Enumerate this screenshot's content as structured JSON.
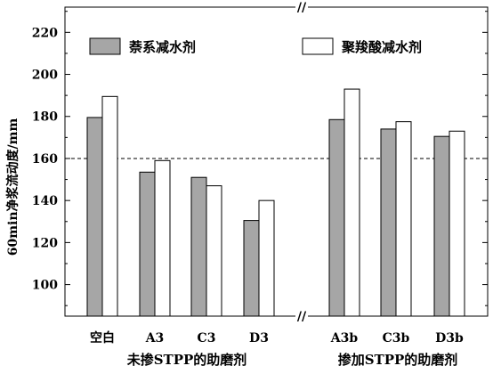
{
  "chart_data": {
    "type": "bar",
    "ylabel": "60min净浆流动度/mm",
    "ylim": [
      85,
      232
    ],
    "yticks": [
      100,
      120,
      140,
      160,
      180,
      200,
      220
    ],
    "reference_line": 160,
    "categories": [
      "空白",
      "A3",
      "C3",
      "D3",
      "A3b",
      "C3b",
      "D3b"
    ],
    "groups": [
      {
        "label": "未掺STPP的助磨剂"
      },
      {
        "label": "掺加STPP的助磨剂"
      }
    ],
    "axis_break_marks": [
      "//",
      "//"
    ],
    "series": [
      {
        "name": "萘系减水剂",
        "color": "#a6a6a6",
        "values": [
          179.5,
          153.5,
          151,
          130.5,
          178.5,
          174,
          170.5
        ]
      },
      {
        "name": "聚羧酸减水剂",
        "color": "#ffffff",
        "values": [
          189.5,
          159,
          147,
          140,
          193,
          177.5,
          173
        ]
      }
    ]
  }
}
